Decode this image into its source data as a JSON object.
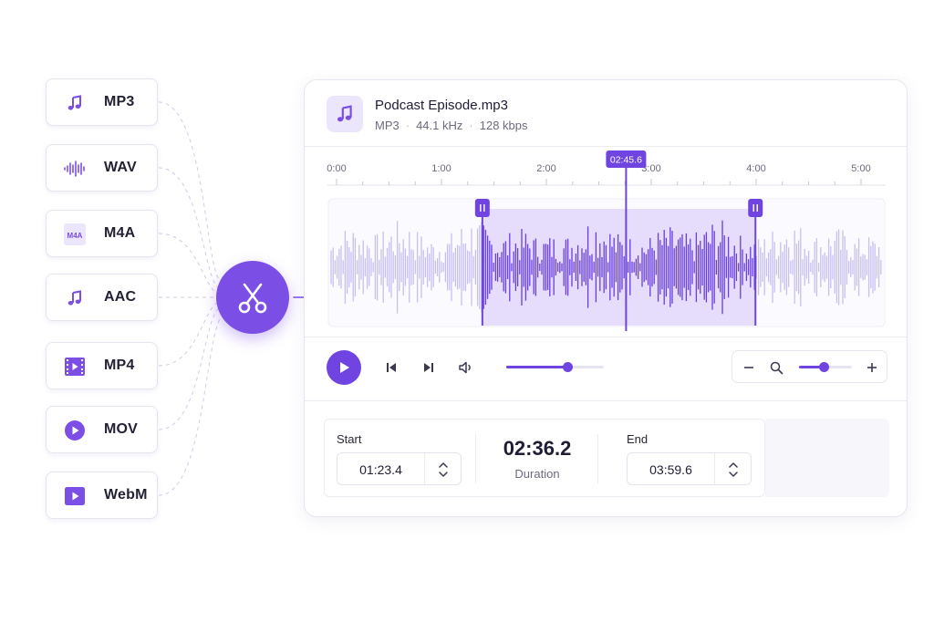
{
  "formats": [
    {
      "label": "MP3",
      "icon": "music-note-icon"
    },
    {
      "label": "WAV",
      "icon": "sound-wave-icon"
    },
    {
      "label": "M4A",
      "icon": "m4a-file-icon",
      "icon_text": "M4A"
    },
    {
      "label": "AAC",
      "icon": "music-note-icon"
    },
    {
      "label": "MP4",
      "icon": "film-strip-icon"
    },
    {
      "label": "MOV",
      "icon": "play-circle-icon"
    },
    {
      "label": "WebM",
      "icon": "play-square-icon"
    }
  ],
  "cut_button": {
    "icon": "scissors-icon"
  },
  "file": {
    "name": "Podcast Episode.mp3",
    "format": "MP3",
    "sample_rate": "44.1 kHz",
    "bitrate": "128 kbps",
    "icon": "music-note-icon"
  },
  "timeline": {
    "tick_labels": [
      "0:00",
      "1:00",
      "2:00",
      "3:00",
      "4:00",
      "5:00"
    ],
    "playhead_label": "02:45.6",
    "playhead_seconds": 165.6,
    "selection_start_seconds": 83.4,
    "selection_end_seconds": 239.6,
    "total_seconds": 300
  },
  "controls": {
    "volume_fraction": 0.63,
    "zoom_fraction": 0.48
  },
  "range": {
    "start_label": "Start",
    "start_value": "01:23.4",
    "duration_value": "02:36.2",
    "duration_label": "Duration",
    "end_label": "End",
    "end_value": "03:59.6"
  },
  "colors": {
    "accent": "#7b4ee6",
    "accent_dark": "#6f44e0",
    "selection_fill": "#e6dcfb"
  }
}
